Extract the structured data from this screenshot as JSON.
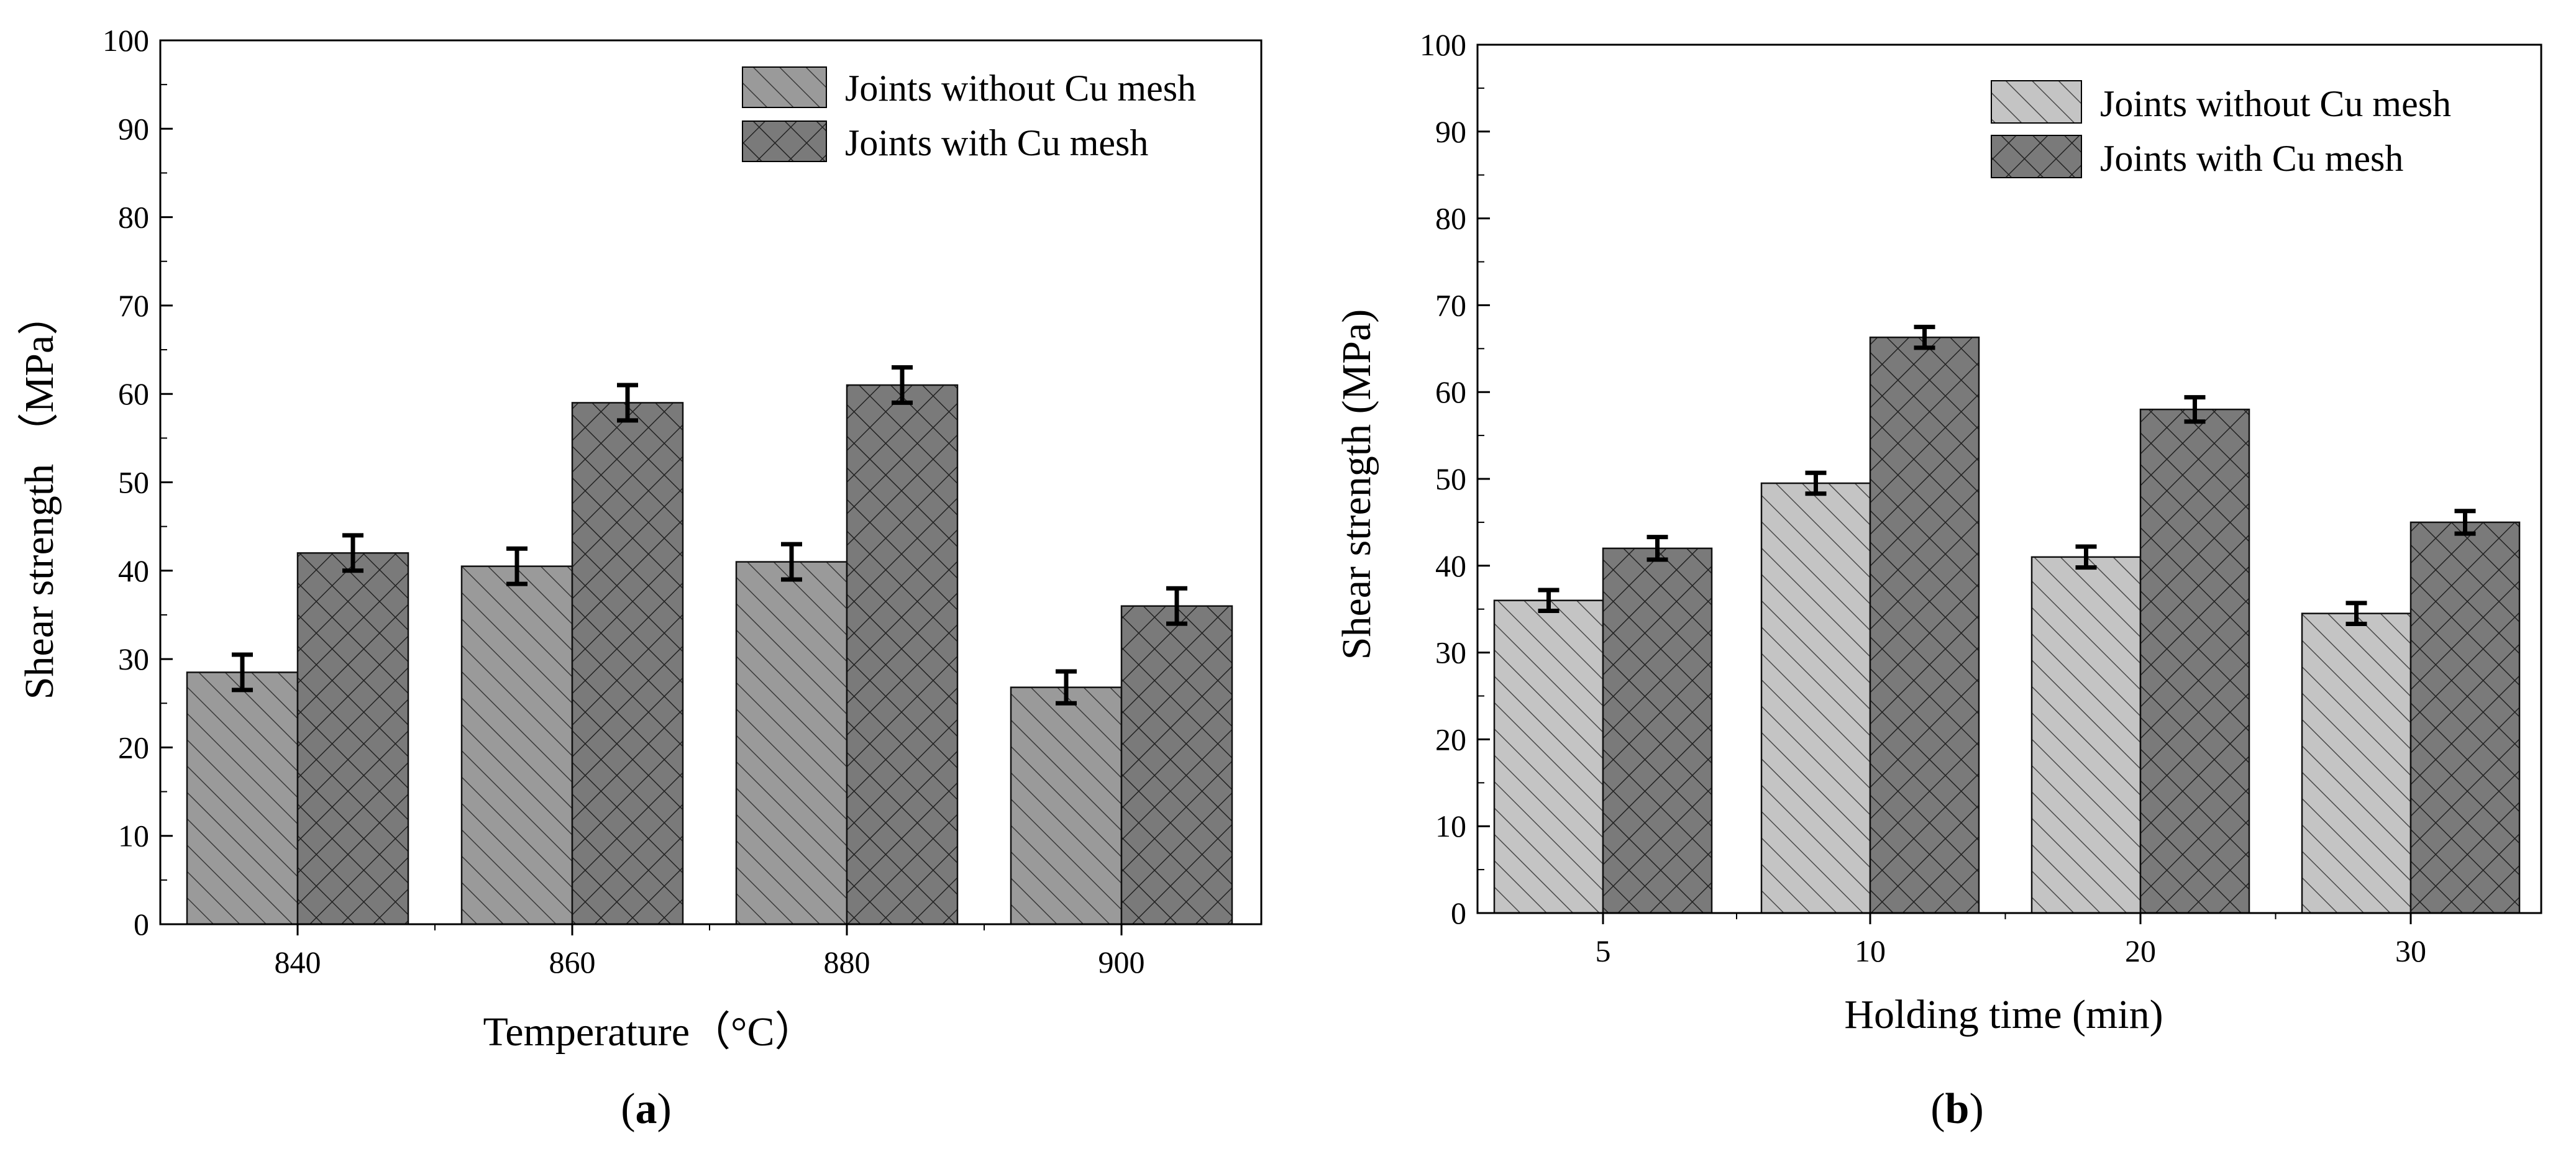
{
  "chart_data": [
    {
      "type": "bar",
      "panel_label": "(a)",
      "panel_letter": "a",
      "xlabel": "Temperature（°C）",
      "ylabel": "Shear strength （MPa）",
      "categories": [
        "840",
        "860",
        "880",
        "900"
      ],
      "ylim": [
        0,
        100
      ],
      "yticks": [
        "0",
        "10",
        "20",
        "30",
        "40",
        "50",
        "60",
        "70",
        "80",
        "90",
        "100"
      ],
      "series": [
        {
          "name": "Joints without Cu mesh",
          "values": [
            28.5,
            40.5,
            41,
            26.8
          ],
          "errors": [
            2.0,
            2.0,
            2.0,
            1.8
          ],
          "fill": "#9a9a9a",
          "pattern": "diagonal"
        },
        {
          "name": "Joints with Cu mesh",
          "values": [
            42,
            59,
            61,
            36
          ],
          "errors": [
            2.0,
            2.0,
            2.0,
            2.0
          ],
          "fill": "#7a7a7a",
          "pattern": "crosshatch"
        }
      ],
      "legend_position": "top-right"
    },
    {
      "type": "bar",
      "panel_label": "(b)",
      "panel_letter": "b",
      "xlabel": "Holding time (min)",
      "ylabel": "Shear strength (MPa)",
      "categories": [
        "5",
        "10",
        "20",
        "30"
      ],
      "ylim": [
        0,
        100
      ],
      "yticks": [
        "0",
        "10",
        "20",
        "30",
        "40",
        "50",
        "60",
        "70",
        "80",
        "90",
        "100"
      ],
      "series": [
        {
          "name": "Joints without Cu mesh",
          "values": [
            36,
            49.5,
            41,
            34.5
          ],
          "errors": [
            1.2,
            1.2,
            1.2,
            1.2
          ],
          "fill": "#c4c4c4",
          "pattern": "diagonal"
        },
        {
          "name": "Joints with Cu mesh",
          "values": [
            42,
            66.3,
            58,
            45
          ],
          "errors": [
            1.3,
            1.2,
            1.4,
            1.3
          ],
          "fill": "#7a7a7a",
          "pattern": "crosshatch"
        }
      ],
      "legend_position": "top-right"
    }
  ]
}
